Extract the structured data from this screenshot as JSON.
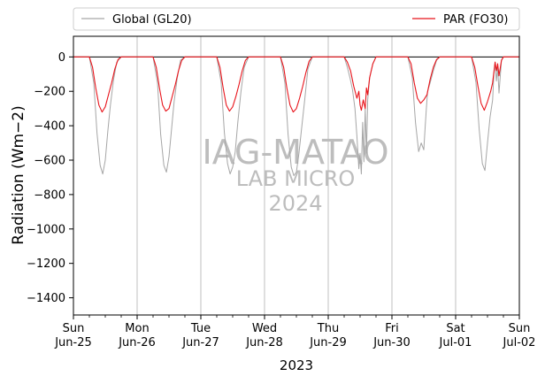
{
  "chart_data": {
    "type": "line",
    "xlabel": "2023",
    "ylabel": "Radiation (Wm−2)",
    "ylim": [
      -1500,
      120
    ],
    "yticks": [
      0,
      -200,
      -400,
      -600,
      -800,
      -1000,
      -1200,
      -1400
    ],
    "xlim_day_index": [
      0,
      7
    ],
    "x_ticks": [
      {
        "day": 0,
        "weekday": "Sun",
        "date": "Jun-25"
      },
      {
        "day": 1,
        "weekday": "Mon",
        "date": "Jun-26"
      },
      {
        "day": 2,
        "weekday": "Tue",
        "date": "Jun-27"
      },
      {
        "day": 3,
        "weekday": "Wed",
        "date": "Jun-28"
      },
      {
        "day": 4,
        "weekday": "Thu",
        "date": "Jun-29"
      },
      {
        "day": 5,
        "weekday": "Fri",
        "date": "Jun-30"
      },
      {
        "day": 6,
        "weekday": "Sat",
        "date": "Jul-01"
      },
      {
        "day": 7,
        "weekday": "Sun",
        "date": "Jul-02"
      }
    ],
    "grid": "vertical at day boundaries",
    "zero_line": true,
    "legend": {
      "placement": "top, outside plot"
    },
    "series": [
      {
        "name": "Global (GL20)",
        "color": "#a6a6a6",
        "x_day": [
          0,
          0.25,
          0.32,
          0.37,
          0.42,
          0.46,
          0.5,
          0.54,
          0.58,
          0.63,
          0.68,
          0.75,
          1,
          1.25,
          1.32,
          1.37,
          1.42,
          1.46,
          1.5,
          1.54,
          1.58,
          1.63,
          1.68,
          1.75,
          2,
          2.25,
          2.32,
          2.37,
          2.42,
          2.46,
          2.5,
          2.54,
          2.58,
          2.63,
          2.68,
          2.75,
          3,
          3.25,
          3.32,
          3.37,
          3.42,
          3.46,
          3.5,
          3.54,
          3.58,
          3.63,
          3.68,
          3.75,
          4,
          4.25,
          4.3,
          4.34,
          4.38,
          4.42,
          4.45,
          4.48,
          4.5,
          4.52,
          4.54,
          4.56,
          4.58,
          4.6,
          4.62,
          4.65,
          4.7,
          4.75,
          5,
          5.25,
          5.32,
          5.37,
          5.42,
          5.46,
          5.5,
          5.52,
          5.54,
          5.56,
          5.6,
          5.65,
          5.7,
          5.75,
          6,
          6.25,
          6.32,
          6.37,
          6.42,
          6.46,
          6.5,
          6.54,
          6.58,
          6.6,
          6.62,
          6.64,
          6.66,
          6.68,
          6.72,
          6.75,
          7
        ],
        "y": [
          0,
          0,
          -150,
          -440,
          -630,
          -680,
          -600,
          -430,
          -280,
          -130,
          -30,
          0,
          0,
          0,
          -150,
          -450,
          -630,
          -670,
          -580,
          -420,
          -260,
          -120,
          -20,
          0,
          0,
          0,
          -150,
          -440,
          -620,
          -680,
          -640,
          -550,
          -380,
          -200,
          -60,
          0,
          0,
          0,
          -150,
          -450,
          -640,
          -690,
          -670,
          -560,
          -420,
          -250,
          -70,
          0,
          0,
          0,
          -60,
          -120,
          -190,
          -300,
          -460,
          -650,
          -560,
          -680,
          -380,
          -610,
          -300,
          -560,
          -250,
          -120,
          -40,
          0,
          0,
          0,
          -120,
          -380,
          -550,
          -500,
          -540,
          -420,
          -300,
          -200,
          -150,
          -80,
          -20,
          0,
          0,
          0,
          -150,
          -420,
          -620,
          -660,
          -500,
          -350,
          -250,
          -100,
          -30,
          -140,
          -60,
          -210,
          -20,
          0,
          0
        ]
      },
      {
        "name": "PAR (FO30)",
        "color": "#e8141b",
        "x_day": [
          0,
          0.25,
          0.3,
          0.35,
          0.4,
          0.45,
          0.5,
          0.55,
          0.6,
          0.65,
          0.7,
          0.75,
          1,
          1.25,
          1.3,
          1.35,
          1.4,
          1.45,
          1.5,
          1.55,
          1.6,
          1.65,
          1.7,
          1.75,
          2,
          2.25,
          2.3,
          2.35,
          2.4,
          2.45,
          2.5,
          2.55,
          2.6,
          2.65,
          2.7,
          2.75,
          3,
          3.25,
          3.3,
          3.35,
          3.4,
          3.45,
          3.5,
          3.55,
          3.6,
          3.65,
          3.7,
          3.75,
          4,
          4.25,
          4.3,
          4.35,
          4.4,
          4.45,
          4.48,
          4.5,
          4.52,
          4.55,
          4.58,
          4.6,
          4.62,
          4.65,
          4.7,
          4.75,
          5,
          5.25,
          5.3,
          5.35,
          5.4,
          5.45,
          5.5,
          5.55,
          5.6,
          5.65,
          5.7,
          5.75,
          6,
          6.25,
          6.3,
          6.35,
          6.4,
          6.45,
          6.5,
          6.55,
          6.58,
          6.6,
          6.62,
          6.64,
          6.66,
          6.68,
          6.72,
          6.75,
          7
        ],
        "y": [
          0,
          0,
          -60,
          -180,
          -280,
          -320,
          -290,
          -220,
          -150,
          -70,
          -15,
          0,
          0,
          0,
          -60,
          -180,
          -280,
          -315,
          -300,
          -230,
          -160,
          -80,
          -20,
          0,
          0,
          0,
          -60,
          -180,
          -280,
          -315,
          -290,
          -230,
          -160,
          -80,
          -20,
          0,
          0,
          0,
          -60,
          -180,
          -280,
          -320,
          -300,
          -240,
          -170,
          -90,
          -25,
          0,
          0,
          0,
          -30,
          -80,
          -170,
          -240,
          -200,
          -280,
          -310,
          -250,
          -300,
          -180,
          -220,
          -120,
          -40,
          0,
          0,
          0,
          -40,
          -150,
          -240,
          -270,
          -250,
          -220,
          -130,
          -60,
          -15,
          0,
          0,
          0,
          -60,
          -170,
          -270,
          -310,
          -260,
          -200,
          -150,
          -90,
          -30,
          -80,
          -40,
          -110,
          -20,
          0,
          0
        ]
      }
    ]
  },
  "watermark": {
    "line1": "IAG-MATAO",
    "line2": "LAB MICRO",
    "line3": "2024"
  }
}
